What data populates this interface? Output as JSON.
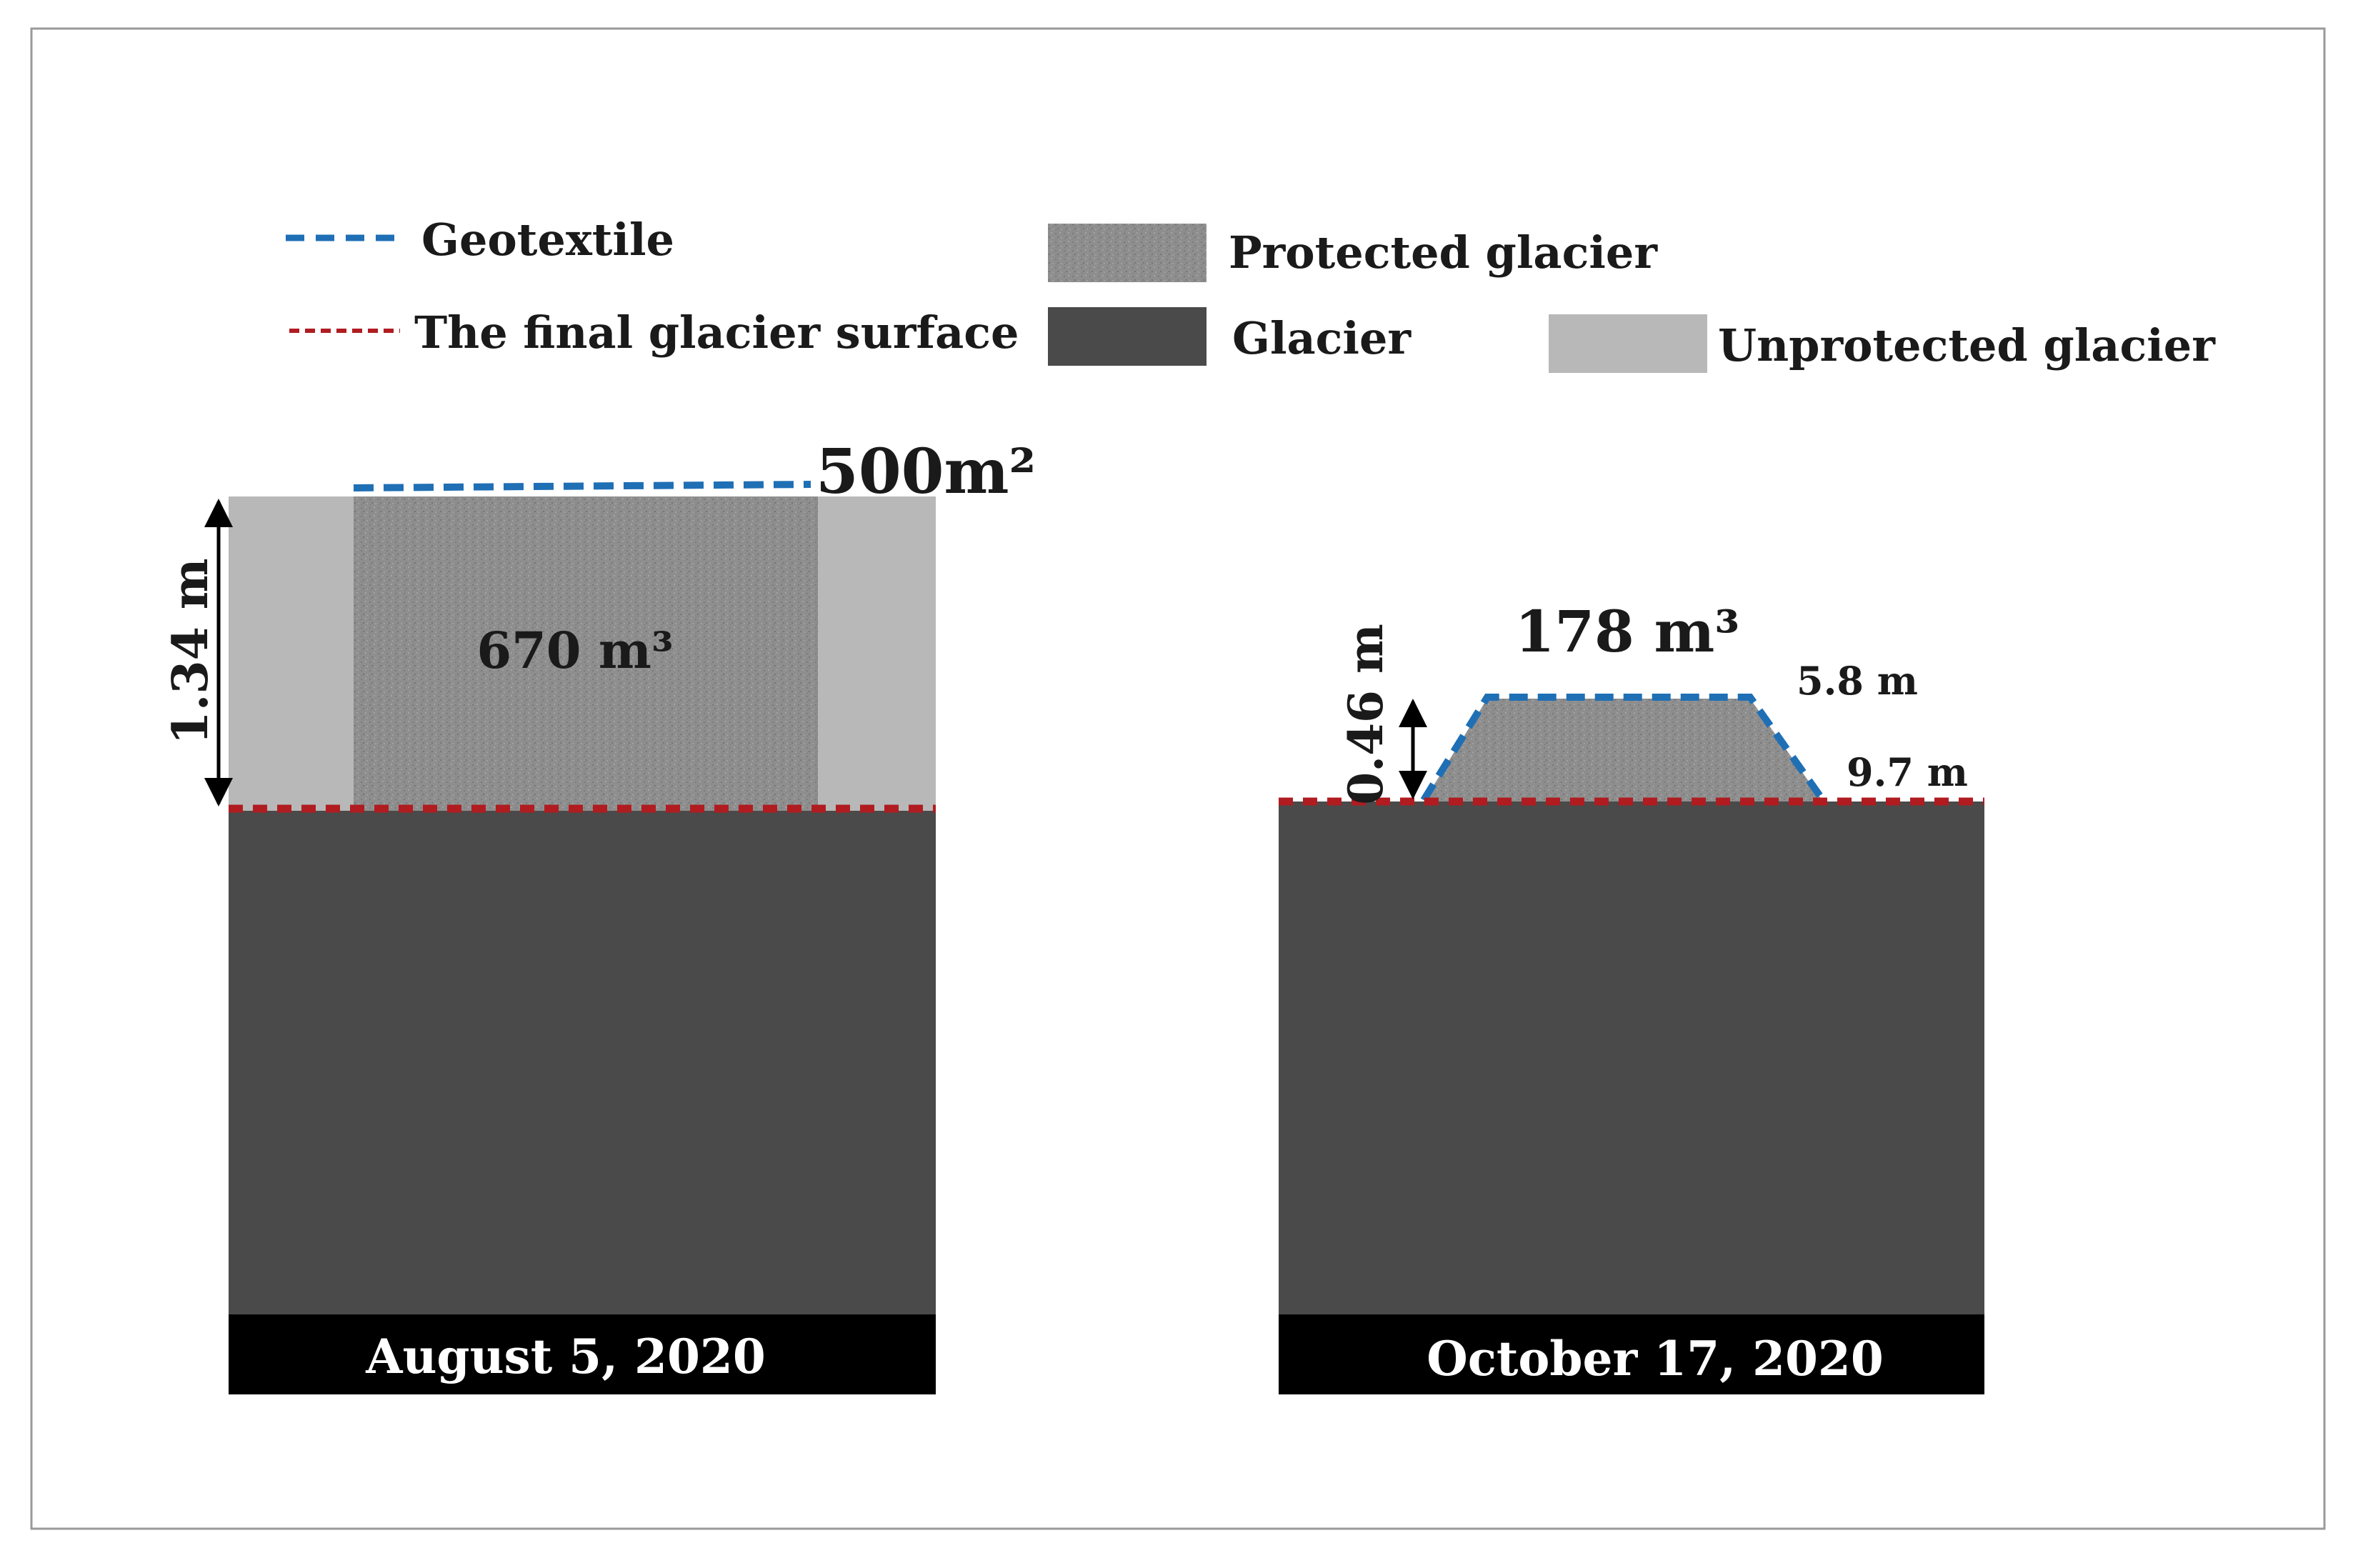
{
  "legend": {
    "geotextile": "Geotextile",
    "final_surface": "The final glacier surface",
    "protected": "Protected glacier",
    "glacier": "Glacier",
    "unprotected": "Unprotected glacier"
  },
  "panel_left": {
    "area_label": "500m²",
    "volume_label": "670 m³",
    "height_label": "1.34 m",
    "date_label": "August 5, 2020"
  },
  "panel_right": {
    "volume_label": "178 m³",
    "height_label": "0.46 m",
    "top_width_label": "5.8 m",
    "bottom_width_label": "9.7 m",
    "date_label": "October 17, 2020"
  },
  "colors": {
    "geotextile": "#1f6fb5",
    "final_surface": "#b01c20",
    "protected": "#8c8c8c",
    "glacier": "#4a4a4a",
    "unprotected": "#b8b8b8",
    "date_bar": "#000000"
  }
}
